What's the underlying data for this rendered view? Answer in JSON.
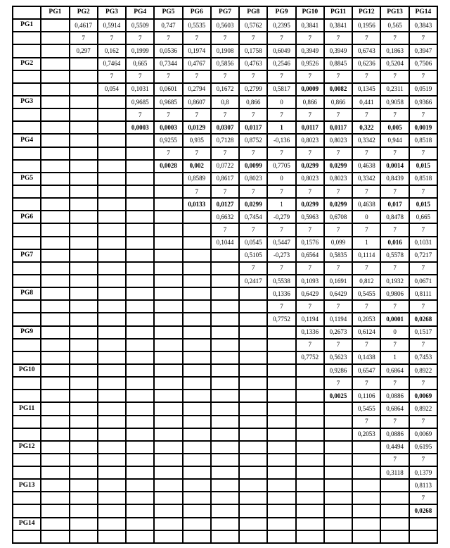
{
  "colors": {
    "background": "#ffffff",
    "border": "#000000",
    "text": "#000000"
  },
  "table": {
    "corner_label": "",
    "n_value": "7",
    "columns": [
      "PG1",
      "PG2",
      "PG3",
      "PG4",
      "PG5",
      "PG6",
      "PG7",
      "PG8",
      "PG9",
      "PG10",
      "PG11",
      "PG12",
      "PG13",
      "PG14"
    ],
    "pg14_trailing_empty_rows": 1,
    "groups": [
      {
        "label": "PG1",
        "start": 2,
        "r": [
          "0,4617",
          "0,5914",
          "0,5509",
          "0,747",
          "0,5535",
          "0,5603",
          "0,5762",
          "0,2395",
          "0,3841",
          "0,3841",
          "0,1956",
          "0,565",
          "0,3843"
        ],
        "p": [
          "0,297",
          "0,162",
          "0,1999",
          "0,0536",
          "0,1974",
          "0,1908",
          "0,1758",
          "0,6049",
          "0,3949",
          "0,3949",
          "0,6743",
          "0,1863",
          "0,3947"
        ],
        "pb": [
          0,
          0,
          0,
          0,
          0,
          0,
          0,
          0,
          0,
          0,
          0,
          0,
          0
        ]
      },
      {
        "label": "PG2",
        "start": 3,
        "r": [
          "0,7464",
          "0,665",
          "0,7344",
          "0,4767",
          "0,5856",
          "0,4763",
          "0,2546",
          "0,9526",
          "0,8845",
          "0,6236",
          "0,5204",
          "0,7506"
        ],
        "p": [
          "0,054",
          "0,1031",
          "0,0601",
          "0,2794",
          "0,1672",
          "0,2799",
          "0,5817",
          "0,0009",
          "0,0082",
          "0,1345",
          "0,2311",
          "0,0519"
        ],
        "pb": [
          0,
          0,
          0,
          0,
          0,
          0,
          0,
          1,
          1,
          0,
          0,
          0
        ]
      },
      {
        "label": "PG3",
        "start": 4,
        "r": [
          "0,9685",
          "0,9685",
          "0,8607",
          "0,8",
          "0,866",
          "0",
          "0,866",
          "0,866",
          "0,441",
          "0,9058",
          "0,9366"
        ],
        "p": [
          "0,0003",
          "0,0003",
          "0,0129",
          "0,0307",
          "0,0117",
          "1",
          "0,0117",
          "0,0117",
          "0,322",
          "0,005",
          "0,0019"
        ],
        "pb": [
          1,
          1,
          1,
          1,
          1,
          1,
          1,
          1,
          1,
          1,
          1
        ]
      },
      {
        "label": "PG4",
        "start": 5,
        "r": [
          "0,9255",
          "0,935",
          "0,7128",
          "0,8752",
          "-0,136",
          "0,8023",
          "0,8023",
          "0,3342",
          "0,944",
          "0,8518"
        ],
        "p": [
          "0,0028",
          "0,002",
          "0,0722",
          "0,0099",
          "0,7705",
          "0,0299",
          "0,0299",
          "0,4638",
          "0,0014",
          "0,015"
        ],
        "pb": [
          1,
          1,
          0,
          1,
          0,
          1,
          1,
          0,
          1,
          1
        ]
      },
      {
        "label": "PG5",
        "start": 6,
        "r": [
          "0,8589",
          "0,8617",
          "0,8023",
          "0",
          "0,8023",
          "0,8023",
          "0,3342",
          "0,8439",
          "0,8518"
        ],
        "p": [
          "0,0133",
          "0,0127",
          "0,0299",
          "1",
          "0,0299",
          "0,0299",
          "0,4638",
          "0,017",
          "0,015"
        ],
        "pb": [
          1,
          1,
          1,
          0,
          1,
          1,
          0,
          1,
          1
        ]
      },
      {
        "label": "PG6",
        "start": 7,
        "r": [
          "0,6632",
          "0,7454",
          "-0,279",
          "0,5963",
          "0,6708",
          "0",
          "0,8478",
          "0,665"
        ],
        "p": [
          "0,1044",
          "0,0545",
          "0,5447",
          "0,1576",
          "0,099",
          "1",
          "0,016",
          "0,1031"
        ],
        "pb": [
          0,
          0,
          0,
          0,
          0,
          0,
          1,
          0
        ]
      },
      {
        "label": "PG7",
        "start": 8,
        "r": [
          "0,5105",
          "-0,273",
          "0,6564",
          "0,5835",
          "0,1114",
          "0,5578",
          "0,7217"
        ],
        "p": [
          "0,2417",
          "0,5538",
          "0,1093",
          "0,1691",
          "0,812",
          "0,1932",
          "0,0671"
        ],
        "pb": [
          0,
          0,
          0,
          0,
          0,
          0,
          0
        ]
      },
      {
        "label": "PG8",
        "start": 9,
        "r": [
          "0,1336",
          "0,6429",
          "0,6429",
          "0,5455",
          "0,9806",
          "0,8111"
        ],
        "p": [
          "0,7752",
          "0,1194",
          "0,1194",
          "0,2053",
          "0,0001",
          "0,0268"
        ],
        "pb": [
          0,
          0,
          0,
          0,
          1,
          1
        ]
      },
      {
        "label": "PG9",
        "start": 10,
        "r": [
          "0,1336",
          "0,2673",
          "0,6124",
          "0",
          "0,1517"
        ],
        "p": [
          "0,7752",
          "0,5623",
          "0,1438",
          "1",
          "0,7453"
        ],
        "pb": [
          0,
          0,
          0,
          0,
          0
        ]
      },
      {
        "label": "PG10",
        "start": 11,
        "r": [
          "0,9286",
          "0,6547",
          "0,6864",
          "0,8922"
        ],
        "p": [
          "0,0025",
          "0,1106",
          "0,0886",
          "0,0069"
        ],
        "pb": [
          1,
          0,
          0,
          1
        ]
      },
      {
        "label": "PG11",
        "start": 12,
        "r": [
          "0,5455",
          "0,6864",
          "0,8922"
        ],
        "p": [
          "0,2053",
          "0,0886",
          "0,0069"
        ],
        "pb": [
          0,
          0,
          0
        ]
      },
      {
        "label": "PG12",
        "start": 13,
        "r": [
          "0,4494",
          "0,6195"
        ],
        "p": [
          "0,3118",
          "0,1379"
        ],
        "pb": [
          0,
          0
        ]
      },
      {
        "label": "PG13",
        "start": 14,
        "r": [
          "0,8113"
        ],
        "p": [
          "0,0268"
        ],
        "pb": [
          1
        ]
      },
      {
        "label": "PG14",
        "start": 15,
        "r": [],
        "p": [],
        "pb": []
      }
    ]
  }
}
